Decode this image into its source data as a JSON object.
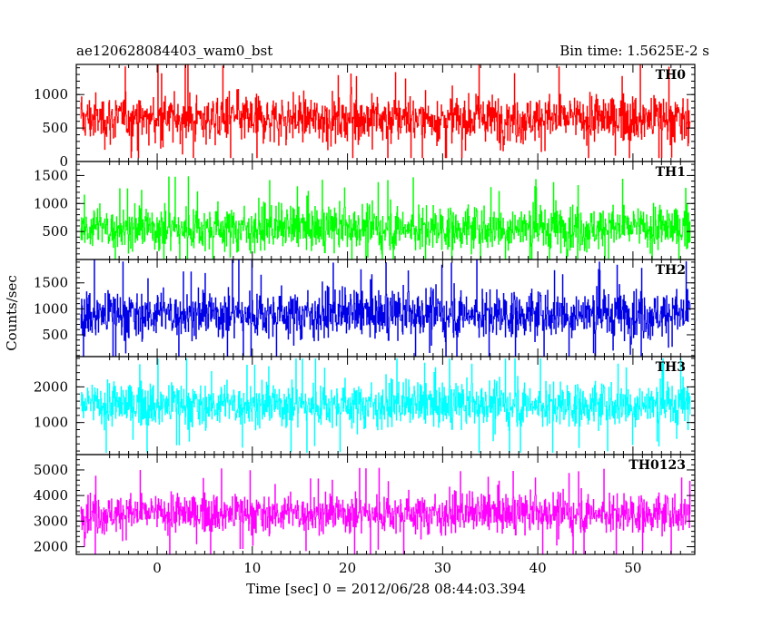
{
  "header": {
    "title": "ae120628084403_wam0_bst",
    "bin_time": "Bin time: 1.5625E-2 s"
  },
  "chart_data": {
    "type": "line",
    "title": "ae120628084403_wam0_bst",
    "xlabel": "Time [sec] 0 = 2012/06/28 08:44:03.394",
    "ylabel": "Counts/sec",
    "xlim": [
      -8.5,
      56.5
    ],
    "x_data_range": [
      -8,
      56
    ],
    "x_ticks": [
      0,
      10,
      20,
      30,
      40,
      50
    ],
    "x_tick_labels": [
      "0",
      "10",
      "20",
      "30",
      "40",
      "50"
    ],
    "grid": false,
    "panels": [
      {
        "name": "TH0",
        "color": "#ff0000",
        "ylim": [
          0,
          1450
        ],
        "y_ticks": [
          0,
          500,
          1000
        ],
        "y_tick_labels": [
          "0",
          "500",
          "1000"
        ],
        "mean": 640,
        "typical_low": 150,
        "typical_high": 1300,
        "min_extreme": 50,
        "max_extreme": 1450
      },
      {
        "name": "TH1",
        "color": "#00ff00",
        "ylim": [
          0,
          1750
        ],
        "y_ticks": [
          500,
          1000,
          1500
        ],
        "y_tick_labels": [
          "500",
          "1000",
          "1500"
        ],
        "mean": 560,
        "typical_low": 100,
        "typical_high": 1400,
        "min_extreme": 0,
        "max_extreme": 1580
      },
      {
        "name": "TH2",
        "color": "#0000e6",
        "ylim": [
          80,
          1950
        ],
        "y_ticks": [
          500,
          1000,
          1500
        ],
        "y_tick_labels": [
          "500",
          "1000",
          "1500"
        ],
        "mean": 900,
        "typical_low": 200,
        "typical_high": 1700,
        "min_extreme": 80,
        "max_extreme": 1950
      },
      {
        "name": "TH3",
        "color": "#00ffff",
        "ylim": [
          100,
          2850
        ],
        "y_ticks": [
          1000,
          2000
        ],
        "y_tick_labels": [
          "1000",
          "2000"
        ],
        "mean": 1500,
        "typical_low": 450,
        "typical_high": 2500,
        "min_extreme": 150,
        "max_extreme": 2800
      },
      {
        "name": "TH0123",
        "color": "#ff00ff",
        "ylim": [
          1700,
          5600
        ],
        "y_ticks": [
          2000,
          3000,
          4000,
          5000
        ],
        "y_tick_labels": [
          "2000",
          "3000",
          "4000",
          "5000"
        ],
        "mean": 3300,
        "typical_low": 2200,
        "typical_high": 4700,
        "min_extreme": 1700,
        "max_extreme": 5600
      }
    ]
  }
}
